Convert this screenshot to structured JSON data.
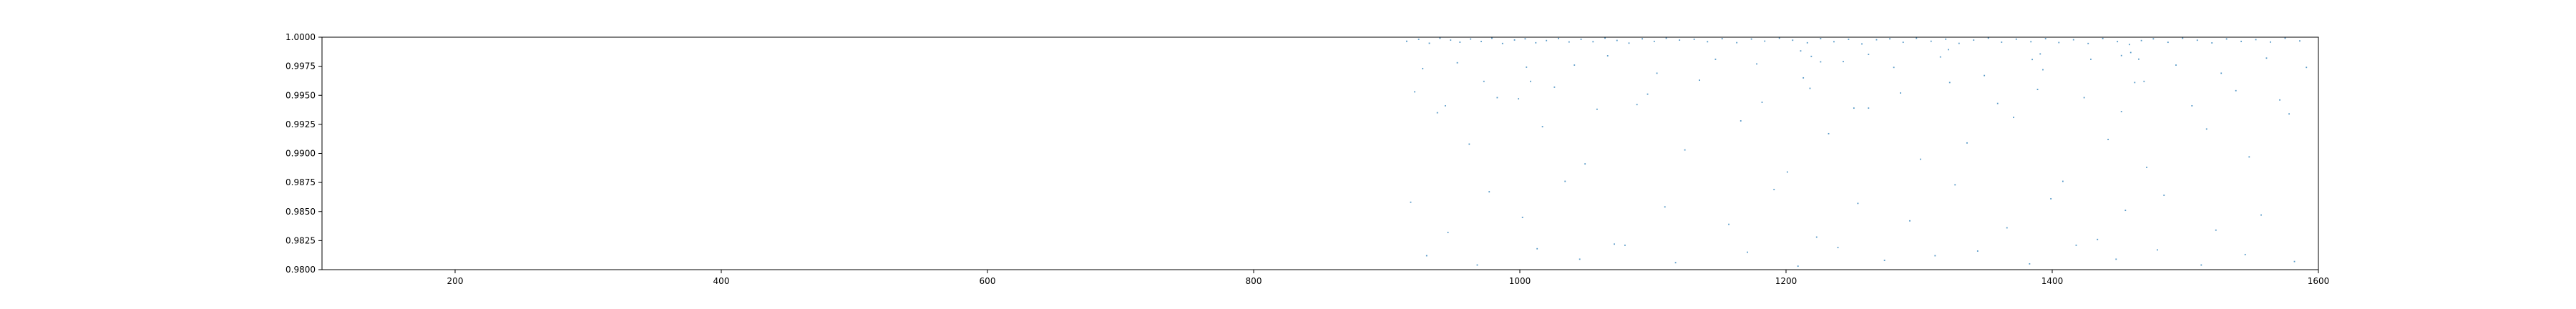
{
  "chart_data": {
    "type": "scatter",
    "title": "",
    "xlabel": "",
    "ylabel": "",
    "xlim": [
      100,
      1600
    ],
    "ylim": [
      0.98,
      1.0
    ],
    "grid": false,
    "legend": "none",
    "x_ticks": [
      200,
      400,
      600,
      800,
      1000,
      1200,
      1400,
      1600
    ],
    "x_tick_labels": [
      "200",
      "400",
      "600",
      "800",
      "1000",
      "1200",
      "1400",
      "1600"
    ],
    "y_ticks": [
      0.98,
      0.9825,
      0.985,
      0.9875,
      0.99,
      0.9925,
      0.995,
      0.9975,
      1.0
    ],
    "y_tick_labels": [
      "0.9800",
      "0.9825",
      "0.9850",
      "0.9875",
      "0.9900",
      "0.9925",
      "0.9950",
      "0.9975",
      "1.0000"
    ],
    "series": [
      {
        "color": "#1f77b4",
        "x": [
          915,
          924,
          932,
          940,
          948,
          955,
          963,
          971,
          979,
          987,
          996,
          1004,
          1012,
          1020,
          1029,
          1037,
          1046,
          1055,
          1064,
          1073,
          1082,
          1092,
          1101,
          1110,
          1120,
          1131,
          1141,
          1152,
          1163,
          1174,
          1184,
          1195,
          1205,
          1216,
          1226,
          1236,
          1247,
          1257,
          1268,
          1278,
          1288,
          1298,
          1309,
          1320,
          1330,
          1341,
          1352,
          1362,
          1373,
          1384,
          1395,
          1405,
          1416,
          1427,
          1438,
          1449,
          1458,
          1467,
          1476,
          1487,
          1498,
          1509,
          1520,
          1531,
          1542,
          1553,
          1564,
          1575,
          1586,
          927,
          953,
          1008,
          1041,
          1066,
          1103,
          1147,
          1178,
          1213,
          1243,
          1281,
          1316,
          1349,
          1393,
          1429,
          1462,
          1493,
          1527,
          1561,
          1591,
          938,
          962,
          983,
          1017,
          1049,
          1088,
          1124,
          1166,
          1201,
          1232,
          1262,
          1301,
          1336,
          1371,
          1408,
          1442,
          1471,
          1516,
          1548,
          1578,
          918,
          946,
          977,
          1002,
          1034,
          1071,
          1109,
          1157,
          1191,
          1223,
          1254,
          1293,
          1327,
          1366,
          1399,
          1434,
          1455,
          1484,
          1523,
          1557,
          930,
          968,
          1013,
          1045,
          1079,
          1117,
          1171,
          1209,
          1239,
          1274,
          1312,
          1344,
          1383,
          1418,
          1448,
          1479,
          1512,
          1545,
          1582,
          921,
          944,
          973,
          999,
          1026,
          1058,
          1096,
          1135,
          1182,
          1218,
          1251,
          1286,
          1323,
          1359,
          1389,
          1424,
          1452,
          1469,
          1505,
          1538,
          1571,
          1219,
          1226,
          1262,
          1385,
          1391,
          1452,
          1459,
          1465,
          1005,
          1211,
          1322
        ],
        "y": [
          0.99965,
          0.99982,
          0.99948,
          0.99991,
          0.99975,
          0.99957,
          0.99984,
          0.99963,
          0.99991,
          0.99946,
          0.99976,
          0.99986,
          0.99952,
          0.99971,
          0.99989,
          0.99959,
          0.99982,
          0.99961,
          0.99992,
          0.99972,
          0.99949,
          0.99986,
          0.99964,
          0.99991,
          0.99975,
          0.99982,
          0.99961,
          0.99987,
          0.99953,
          0.99984,
          0.99966,
          0.99991,
          0.99974,
          0.99952,
          0.99988,
          0.99961,
          0.99982,
          0.99942,
          0.99978,
          0.99986,
          0.99956,
          0.99991,
          0.99965,
          0.99983,
          0.99947,
          0.99975,
          0.99992,
          0.99957,
          0.99983,
          0.99961,
          0.99987,
          0.99954,
          0.99978,
          0.99946,
          0.99989,
          0.99962,
          0.99937,
          0.99971,
          0.99986,
          0.99956,
          0.99991,
          0.99974,
          0.99951,
          0.99985,
          0.99964,
          0.99979,
          0.99958,
          0.99991,
          0.99968,
          0.9973,
          0.9978,
          0.9962,
          0.9976,
          0.9984,
          0.9969,
          0.9981,
          0.9977,
          0.9965,
          0.9979,
          0.9974,
          0.9983,
          0.9967,
          0.9972,
          0.9981,
          0.9961,
          0.9976,
          0.9969,
          0.9982,
          0.9974,
          0.9935,
          0.9908,
          0.9948,
          0.9923,
          0.9891,
          0.9942,
          0.9903,
          0.9928,
          0.9884,
          0.9917,
          0.9939,
          0.9895,
          0.9909,
          0.9931,
          0.9876,
          0.9912,
          0.9888,
          0.9921,
          0.9897,
          0.9934,
          0.9858,
          0.9832,
          0.9867,
          0.9845,
          0.9876,
          0.9822,
          0.9854,
          0.9839,
          0.9869,
          0.9828,
          0.9857,
          0.9842,
          0.9873,
          0.9836,
          0.9861,
          0.9826,
          0.9851,
          0.9864,
          0.9834,
          0.9847,
          0.9812,
          0.9804,
          0.9818,
          0.9809,
          0.9821,
          0.9806,
          0.9815,
          0.9803,
          0.9819,
          0.9808,
          0.9812,
          0.9816,
          0.9805,
          0.9821,
          0.9809,
          0.9817,
          0.9804,
          0.9813,
          0.9807,
          0.9953,
          0.9941,
          0.9962,
          0.9947,
          0.9957,
          0.9938,
          0.9951,
          0.9963,
          0.9944,
          0.9956,
          0.9939,
          0.9952,
          0.9961,
          0.9943,
          0.9955,
          0.9948,
          0.9936,
          0.9962,
          0.9941,
          0.9954,
          0.9946,
          0.99835,
          0.99788,
          0.99852,
          0.99808,
          0.99856,
          0.99842,
          0.99868,
          0.99811,
          0.99742,
          0.99882,
          0.99893
        ]
      }
    ]
  }
}
